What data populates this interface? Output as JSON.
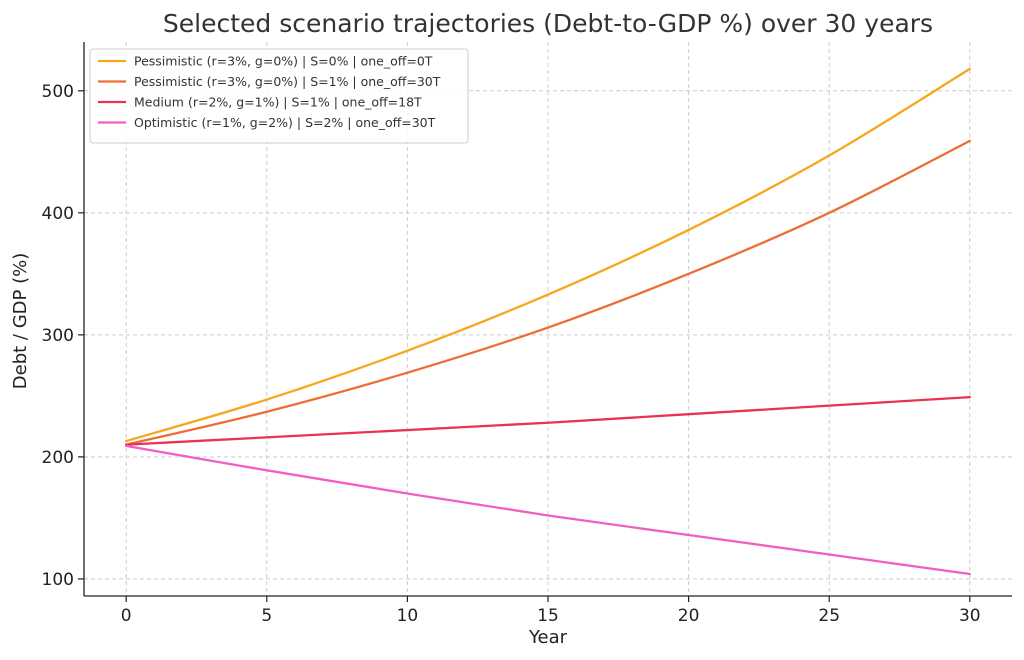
{
  "chart_data": {
    "type": "line",
    "title": "Selected scenario trajectories (Debt-to-GDP %) over 30 years",
    "xlabel": "Year",
    "ylabel": "Debt / GDP (%)",
    "xlim": [
      -1.5,
      31.5
    ],
    "ylim": [
      86,
      540
    ],
    "xticks": [
      0,
      5,
      10,
      15,
      20,
      25,
      30
    ],
    "yticks": [
      100,
      200,
      300,
      400,
      500
    ],
    "grid": true,
    "legend_position": "top-left",
    "x": [
      0,
      5,
      10,
      15,
      20,
      25,
      30
    ],
    "series": [
      {
        "name": "Pessimistic (r=3%, g=0%) | S=0% | one_off=0T",
        "color": "#f5a81c",
        "values": [
          213,
          247,
          287,
          333,
          386,
          447,
          518
        ]
      },
      {
        "name": "Pessimistic (r=3%, g=0%) | S=1% | one_off=30T",
        "color": "#ec6e34",
        "values": [
          210,
          237,
          269,
          306,
          350,
          400,
          459
        ]
      },
      {
        "name": "Medium (r=2%, g=1%) | S=1% | one_off=18T",
        "color": "#e8344f",
        "values": [
          210,
          216,
          222,
          228,
          235,
          242,
          249
        ]
      },
      {
        "name": "Optimistic (r=1%, g=2%) | S=2% | one_off=30T",
        "color": "#f25fc4",
        "values": [
          209,
          189,
          170,
          152,
          136,
          120,
          104
        ]
      }
    ]
  }
}
